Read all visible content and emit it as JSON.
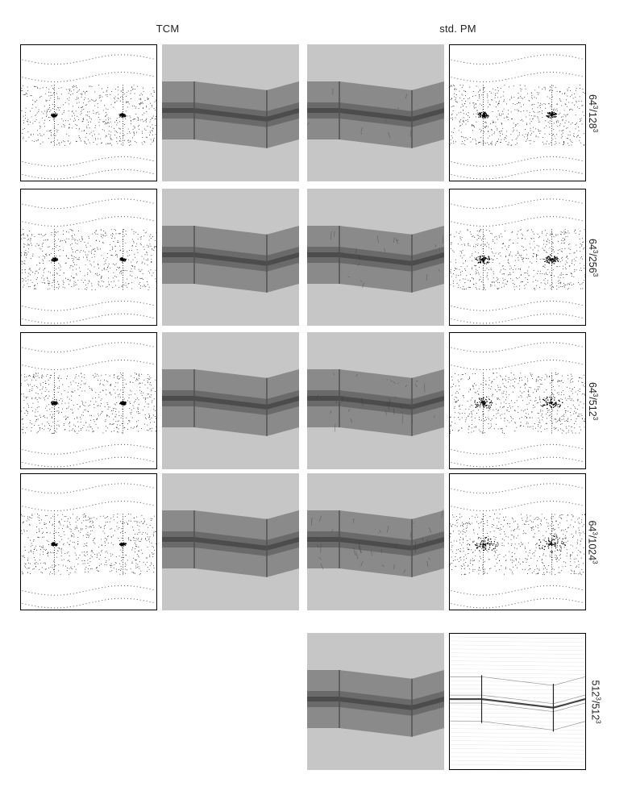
{
  "columns": {
    "left_header": "TCM",
    "right_header": "std. PM"
  },
  "rows": [
    {
      "label": "64³/128³",
      "base": "64",
      "exp1": "3",
      "div": "128",
      "exp2": "3"
    },
    {
      "label": "64³/256³",
      "base": "64",
      "exp1": "3",
      "div": "256",
      "exp2": "3"
    },
    {
      "label": "64³/512³",
      "base": "64",
      "exp1": "3",
      "div": "512",
      "exp2": "3"
    },
    {
      "label": "64³/1024³",
      "base": "64",
      "exp1": "3",
      "div": "1024",
      "exp2": "3"
    },
    {
      "label": "512³/512³",
      "base": "512",
      "exp1": "3",
      "div": "512",
      "exp2": "3"
    }
  ]
}
